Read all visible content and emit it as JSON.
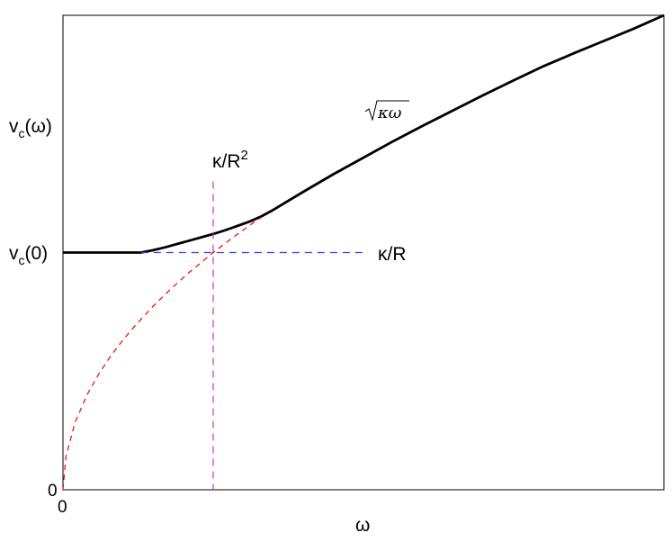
{
  "chart_data": {
    "type": "line",
    "title": "",
    "xlabel": "ω",
    "ylabel": "v_c(ω)",
    "xlim": [
      0,
      1
    ],
    "ylim": [
      0,
      1
    ],
    "x_ticks": [
      "0"
    ],
    "y_ticks": [
      "0",
      "v_c(0)"
    ],
    "grid": false,
    "annotations": {
      "vertical_marker": "κ/R²",
      "horizontal_marker": "κ/R",
      "asymptote": "√κω"
    },
    "reference_values": {
      "omega_marker": 0.25,
      "v_c0": 0.5,
      "horizontal_end": 0.5
    },
    "series": [
      {
        "style": "solid",
        "color": "#000000",
        "x": [
          0,
          0.13,
          0.15,
          0.17,
          0.19,
          0.21,
          0.23,
          0.25,
          0.27,
          0.29,
          0.31,
          0.33,
          0.35,
          0.4,
          0.45,
          0.5,
          0.55,
          0.6,
          0.65,
          0.7,
          0.75,
          0.8,
          0.85,
          0.9,
          0.95,
          1.0
        ],
        "y": [
          0.5,
          0.5,
          0.505,
          0.511,
          0.518,
          0.525,
          0.532,
          0.539,
          0.547,
          0.556,
          0.565,
          0.576,
          0.59,
          0.628,
          0.665,
          0.7,
          0.735,
          0.768,
          0.8,
          0.832,
          0.863,
          0.893,
          0.92,
          0.946,
          0.972,
          1.0
        ]
      },
      {
        "style": "dashed",
        "color": "#ee0000",
        "x": [
          0,
          0.005,
          0.02,
          0.04,
          0.06,
          0.08,
          0.1,
          0.12,
          0.15,
          0.18,
          0.21,
          0.25,
          0.28,
          0.32,
          0.33
        ],
        "y": [
          0,
          0.07,
          0.142,
          0.2,
          0.245,
          0.283,
          0.316,
          0.346,
          0.387,
          0.424,
          0.458,
          0.5,
          0.529,
          0.566,
          0.574
        ]
      }
    ],
    "colors": {
      "axes": "#000000",
      "main_curve": "#000000",
      "sqrt_curve": "#ee0000",
      "horizontal_marker": "#3a3aff",
      "vertical_marker": "#cc33cc"
    }
  }
}
